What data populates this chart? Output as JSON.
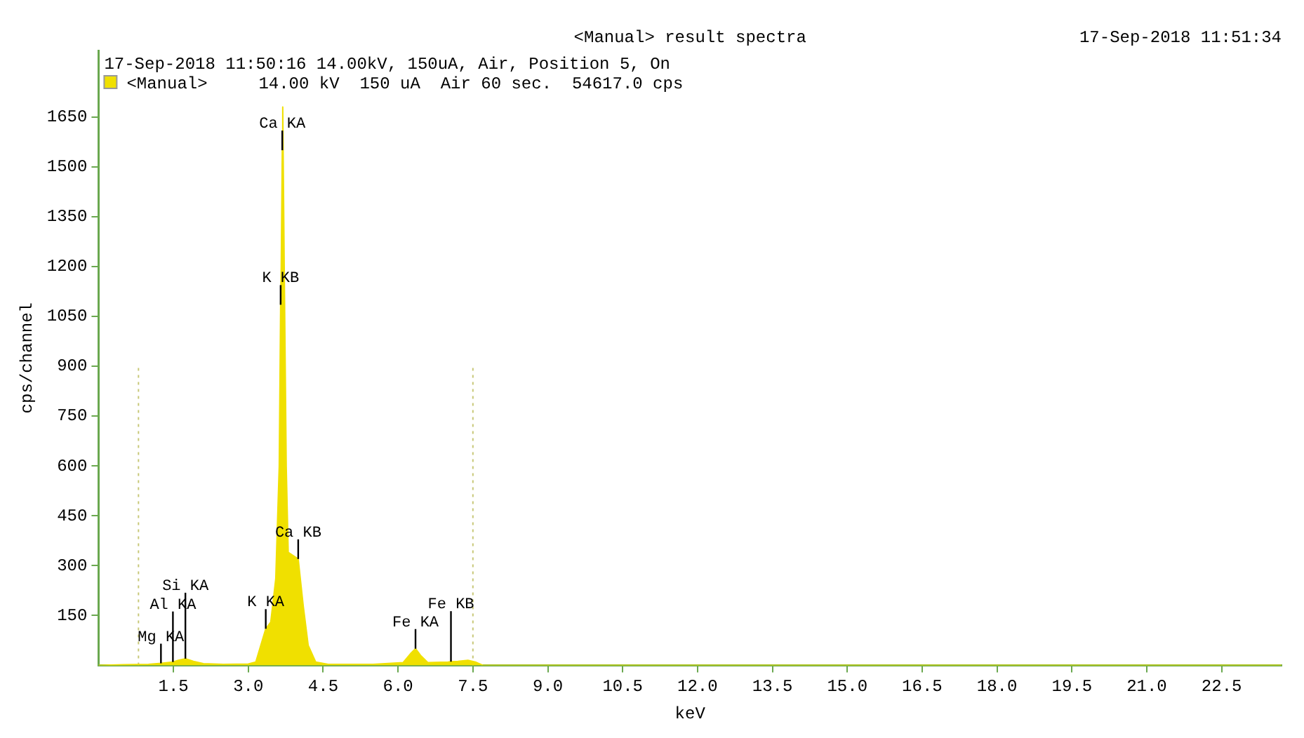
{
  "chart_data": {
    "type": "area",
    "title": "<Manual> result spectra",
    "subtitle": "17-Sep-2018 11:50:16 14.00kV, 150uA, Air, Position 5, On",
    "xlabel": "keV",
    "ylabel": "cps/channel",
    "xlim": [
      0,
      23.7
    ],
    "xticks": [
      {
        "value": 1.5,
        "label": "1.5"
      },
      {
        "value": 3,
        "label": "3.0"
      },
      {
        "value": 4.5,
        "label": "4.5"
      },
      {
        "value": 6,
        "label": "6.0"
      },
      {
        "value": 7.5,
        "label": "7.5"
      },
      {
        "value": 9,
        "label": "9.0"
      },
      {
        "value": 10.5,
        "label": "10.5"
      },
      {
        "value": 12,
        "label": "12.0"
      },
      {
        "value": 13.5,
        "label": "13.5"
      },
      {
        "value": 15,
        "label": "15.0"
      },
      {
        "value": 16.5,
        "label": "16.5"
      },
      {
        "value": 18,
        "label": "18.0"
      },
      {
        "value": 19.5,
        "label": "19.5"
      },
      {
        "value": 21,
        "label": "21.0"
      },
      {
        "value": 22.5,
        "label": "22.5"
      }
    ],
    "ylim": [
      0,
      1850
    ],
    "yticks": [
      150,
      300,
      450,
      600,
      750,
      900,
      1050,
      1200,
      1350,
      1500,
      1650
    ],
    "grid": false,
    "legend": "top left",
    "marker": "none",
    "series": [
      {
        "name": "<Manual>",
        "color": "#f0e000",
        "x": [
          0,
          0.5,
          1.0,
          1.25,
          1.49,
          1.6,
          1.74,
          1.9,
          2.1,
          2.5,
          3.0,
          3.15,
          3.25,
          3.35,
          3.45,
          3.55,
          3.62,
          3.648,
          3.66,
          3.681,
          3.69,
          3.72,
          3.76,
          3.8,
          3.9,
          4.0,
          4.1,
          4.2,
          4.35,
          4.6,
          5.5,
          6.1,
          6.25,
          6.35,
          6.45,
          6.6,
          7.0,
          7.06,
          7.2,
          7.4,
          7.55,
          7.7,
          8.0,
          23.7
        ],
        "values": [
          0,
          2,
          3,
          6,
          10,
          15,
          20,
          12,
          5,
          3,
          4,
          10,
          60,
          110,
          130,
          260,
          600,
          1085,
          1200,
          1550,
          1680,
          1200,
          600,
          340,
          330,
          320,
          180,
          60,
          10,
          3,
          3,
          8,
          35,
          50,
          30,
          8,
          10,
          11,
          12,
          15,
          10,
          0,
          0,
          0
        ]
      },
      {
        "type": "line",
        "color": "#c8c878",
        "line_style": "dotted",
        "x": [
          0.8,
          0.8
        ],
        "values": [
          0,
          900
        ]
      },
      {
        "type": "line",
        "color": "#c8c878",
        "line_style": "dotted",
        "x": [
          7.5,
          7.5
        ],
        "values": [
          0,
          900
        ]
      }
    ],
    "annotations": [
      "17-Sep-2018 11:51:34",
      "14.00 kV  150 uA  Air 60 sec.  54617.0 cps",
      {
        "text": "Mg KA",
        "x": 1.25,
        "y": 6
      },
      {
        "text": "Al KA",
        "x": 1.49,
        "y": 10
      },
      {
        "text": "Si KA",
        "x": 1.74,
        "y": 20
      },
      {
        "text": "K KA",
        "x": 3.35,
        "y": 110
      },
      {
        "text": "K KB",
        "x": 3.648,
        "y": 1085
      },
      {
        "text": "Ca KA",
        "x": 3.681,
        "y": 1550
      },
      {
        "text": "Ca KB",
        "x": 4.0,
        "y": 320
      },
      {
        "text": "Fe KA",
        "x": 6.35,
        "y": 50
      },
      {
        "text": "Fe KB",
        "x": 7.06,
        "y": 11
      }
    ]
  }
}
